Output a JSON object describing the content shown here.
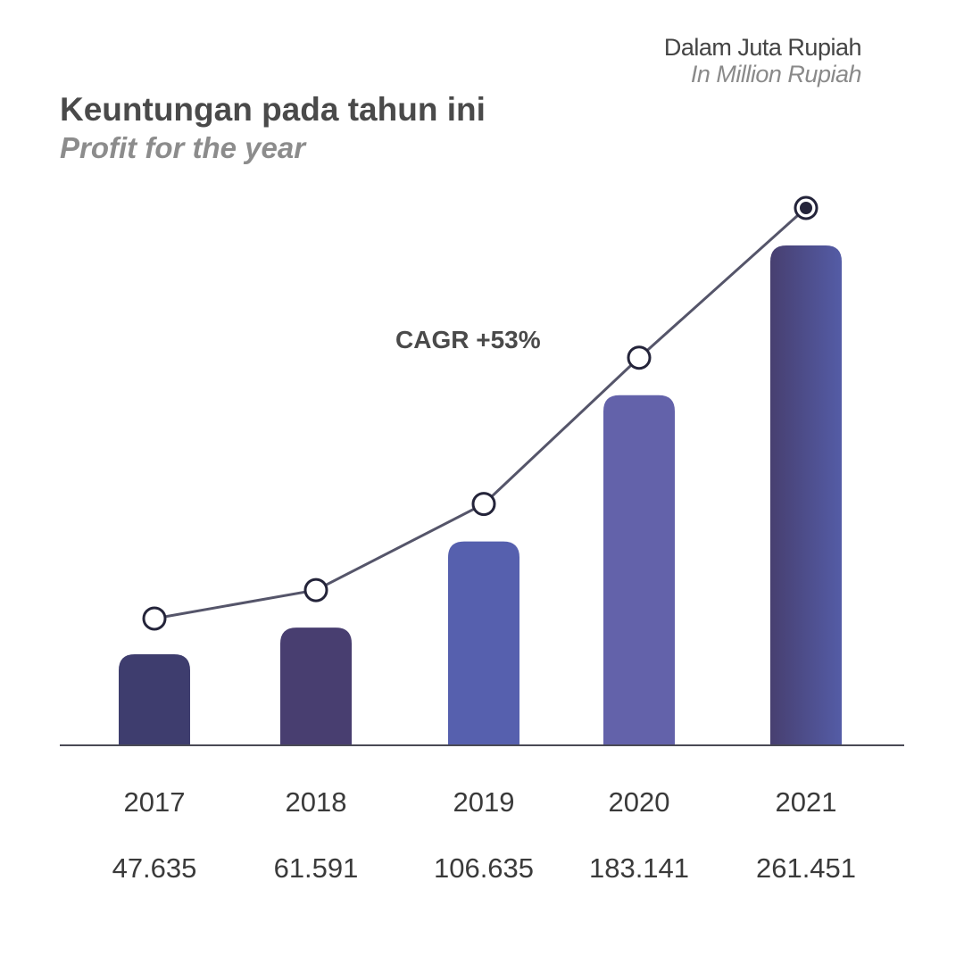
{
  "unit": {
    "id": "Dalam Juta Rupiah",
    "en": "In Million Rupiah"
  },
  "title": {
    "id": "Keuntungan pada tahun ini",
    "en": "Profit for the year"
  },
  "annotation": "CAGR +53%",
  "chart_data": {
    "type": "bar",
    "title": "Keuntungan pada tahun ini",
    "subtitle": "Profit for the year",
    "unit_label": "Dalam Juta Rupiah / In Million Rupiah",
    "categories": [
      "2017",
      "2018",
      "2019",
      "2020",
      "2021"
    ],
    "values": [
      47635,
      61591,
      106635,
      183141,
      261451
    ],
    "value_labels": [
      "47.635",
      "61.591",
      "106.635",
      "183.141",
      "261.451"
    ],
    "trend_line": true,
    "annotation": "CAGR +53%",
    "bar_colors": [
      "#3e3d6e",
      "#483e70",
      "#5660ae",
      "#6362aa",
      "#4e4f97"
    ],
    "line_color": "#55556a",
    "grid": false,
    "xlabel": "",
    "ylabel": ""
  }
}
